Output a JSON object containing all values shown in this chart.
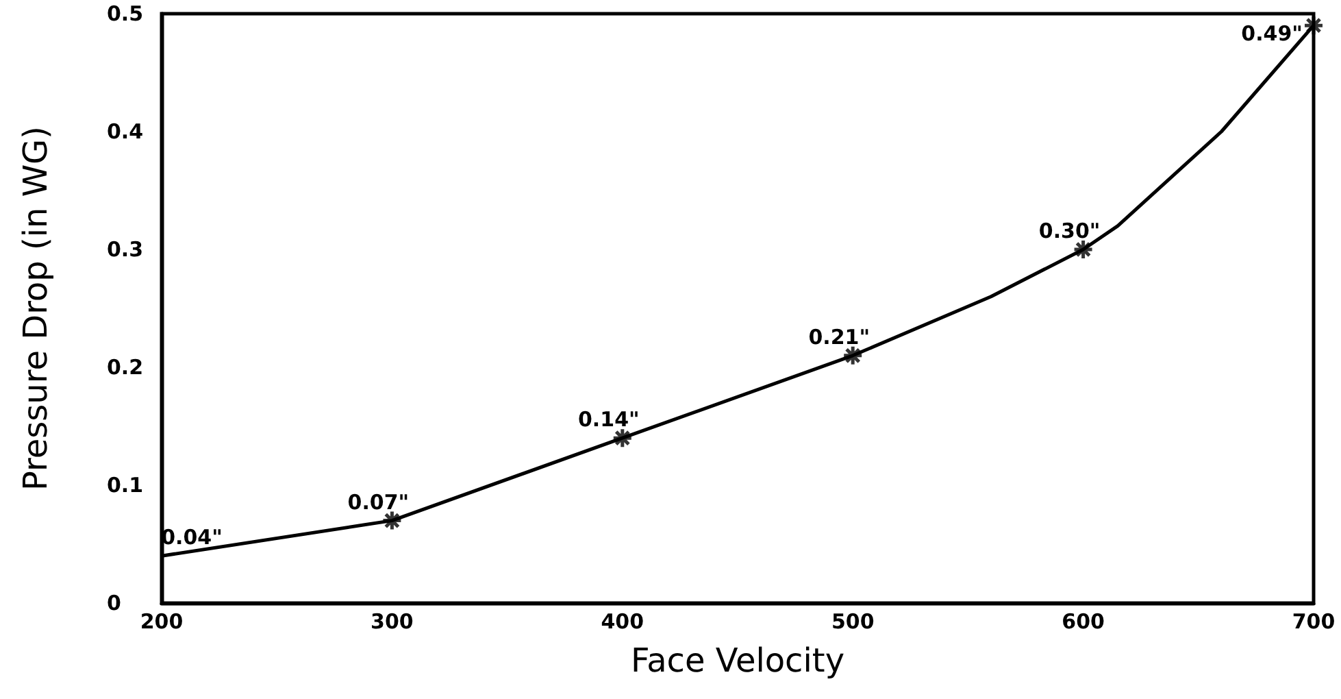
{
  "chart_data": {
    "type": "line",
    "xlabel": "Face Velocity",
    "ylabel": "Pressure Drop (in WG)",
    "xlim": [
      200,
      700
    ],
    "xticks": [
      200,
      300,
      400,
      500,
      600,
      700
    ],
    "ylim": [
      0,
      0.5
    ],
    "yticks": [
      0,
      0.1,
      0.2,
      0.3,
      0.4,
      0.5
    ],
    "grid": false,
    "series": [
      {
        "color": "#000000",
        "marker": "none",
        "x": [
          200,
          300,
          400,
          500,
          560,
          600,
          615,
          660,
          700
        ],
        "values": [
          0.04,
          0.07,
          0.14,
          0.21,
          0.26,
          0.3,
          0.32,
          0.4,
          0.49
        ],
        "value_labels": [
          "0.04\"",
          "0.07\"",
          "0.14\"",
          "0.21\"",
          null,
          "0.30\"",
          null,
          null,
          "0.49\""
        ]
      },
      {
        "type": "scatter",
        "color": "#000000",
        "marker": "cross",
        "x": [
          300,
          400,
          500,
          600,
          700
        ],
        "values": [
          0.07,
          0.14,
          0.21,
          0.3,
          0.49
        ]
      }
    ]
  }
}
